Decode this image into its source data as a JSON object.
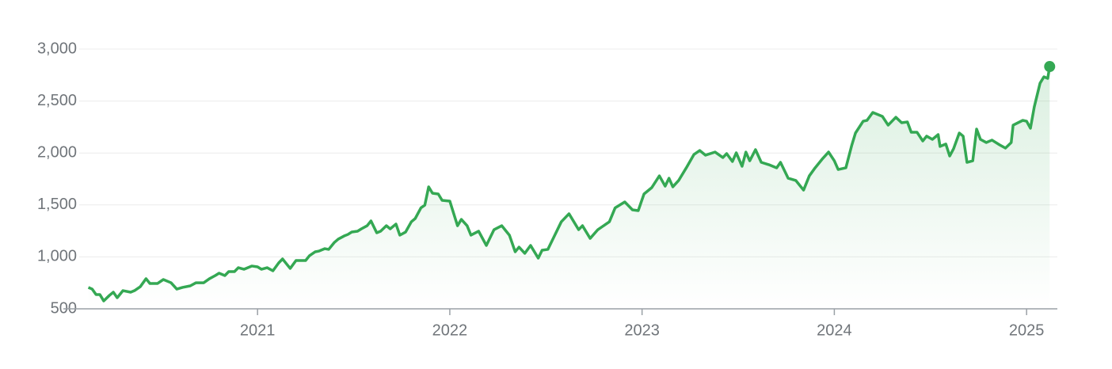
{
  "chart_data": {
    "type": "line",
    "x": [
      2020.12,
      2020.14,
      2020.16,
      2020.18,
      2020.2,
      2020.23,
      2020.25,
      2020.27,
      2020.3,
      2020.34,
      2020.36,
      2020.39,
      2020.42,
      2020.44,
      2020.48,
      2020.51,
      2020.55,
      2020.58,
      2020.61,
      2020.65,
      2020.68,
      2020.72,
      2020.75,
      2020.78,
      2020.8,
      2020.83,
      2020.85,
      2020.88,
      2020.9,
      2020.93,
      2020.97,
      2021.0,
      2021.02,
      2021.05,
      2021.08,
      2021.11,
      2021.13,
      2021.15,
      2021.17,
      2021.2,
      2021.22,
      2021.25,
      2021.27,
      2021.3,
      2021.32,
      2021.35,
      2021.37,
      2021.4,
      2021.42,
      2021.45,
      2021.47,
      2021.49,
      2021.52,
      2021.54,
      2021.57,
      2021.59,
      2021.62,
      2021.64,
      2021.67,
      2021.69,
      2021.72,
      2021.74,
      2021.77,
      2021.8,
      2021.82,
      2021.85,
      2021.87,
      2021.89,
      2021.91,
      2021.94,
      2021.96,
      2022.0,
      2022.04,
      2022.06,
      2022.09,
      2022.11,
      2022.15,
      2022.19,
      2022.23,
      2022.27,
      2022.31,
      2022.34,
      2022.36,
      2022.39,
      2022.42,
      2022.46,
      2022.48,
      2022.51,
      2022.54,
      2022.58,
      2022.62,
      2022.67,
      2022.69,
      2022.73,
      2022.77,
      2022.83,
      2022.86,
      2022.91,
      2022.95,
      2022.98,
      2023.01,
      2023.05,
      2023.09,
      2023.12,
      2023.14,
      2023.16,
      2023.19,
      2023.23,
      2023.27,
      2023.3,
      2023.33,
      2023.38,
      2023.42,
      2023.44,
      2023.47,
      2023.49,
      2023.52,
      2023.54,
      2023.56,
      2023.59,
      2023.62,
      2023.66,
      2023.7,
      2023.72,
      2023.76,
      2023.8,
      2023.84,
      2023.87,
      2023.9,
      2023.94,
      2023.97,
      2024.0,
      2024.02,
      2024.06,
      2024.09,
      2024.11,
      2024.15,
      2024.17,
      2024.2,
      2024.25,
      2024.28,
      2024.32,
      2024.35,
      2024.38,
      2024.4,
      2024.43,
      2024.46,
      2024.48,
      2024.51,
      2024.54,
      2024.55,
      2024.58,
      2024.6,
      2024.62,
      2024.65,
      2024.67,
      2024.69,
      2024.72,
      2024.74,
      2024.76,
      2024.79,
      2024.82,
      2024.86,
      2024.89,
      2024.92,
      2024.93,
      2024.98,
      2025.0,
      2025.02,
      2025.04,
      2025.07,
      2025.09,
      2025.11,
      2025.12
    ],
    "series": [
      {
        "color": "#34a853",
        "values": [
          706,
          690,
          637,
          637,
          576,
          630,
          660,
          607,
          675,
          660,
          675,
          713,
          790,
          744,
          744,
          782,
          751,
          690,
          706,
          721,
          751,
          751,
          790,
          820,
          843,
          820,
          858,
          858,
          896,
          881,
          912,
          904,
          881,
          896,
          866,
          942,
          980,
          934,
          889,
          965,
          965,
          965,
          1011,
          1049,
          1056,
          1079,
          1072,
          1140,
          1171,
          1201,
          1216,
          1239,
          1247,
          1270,
          1300,
          1346,
          1232,
          1247,
          1300,
          1270,
          1316,
          1209,
          1239,
          1338,
          1369,
          1472,
          1498,
          1674,
          1613,
          1605,
          1544,
          1537,
          1300,
          1361,
          1300,
          1209,
          1247,
          1110,
          1262,
          1300,
          1209,
          1049,
          1094,
          1034,
          1110,
          988,
          1064,
          1072,
          1186,
          1338,
          1415,
          1262,
          1300,
          1178,
          1262,
          1338,
          1472,
          1529,
          1453,
          1445,
          1605,
          1666,
          1780,
          1681,
          1757,
          1674,
          1735,
          1857,
          1986,
          2024,
          1979,
          2009,
          1956,
          1994,
          1918,
          2002,
          1872,
          2009,
          1925,
          2032,
          1910,
          1887,
          1857,
          1910,
          1757,
          1735,
          1643,
          1780,
          1857,
          1948,
          2009,
          1925,
          1841,
          1857,
          2070,
          2192,
          2306,
          2314,
          2390,
          2352,
          2268,
          2344,
          2291,
          2299,
          2200,
          2200,
          2116,
          2162,
          2131,
          2177,
          2063,
          2086,
          1971,
          2040,
          2192,
          2162,
          1910,
          1925,
          2230,
          2131,
          2101,
          2124,
          2078,
          2047,
          2101,
          2268,
          2314,
          2306,
          2238,
          2444,
          2672,
          2733,
          2718,
          2832
        ]
      }
    ],
    "xlim": [
      2019.99,
      2025.16
    ],
    "xticks": [
      2021,
      2022,
      2023,
      2024,
      2025
    ],
    "ylim": [
      500,
      3000
    ],
    "yticks": [
      500,
      {
        "value": 1000,
        "label": "1,000"
      },
      {
        "value": 1500,
        "label": "1,500"
      },
      {
        "value": 2000,
        "label": "2,000"
      },
      {
        "value": 2500,
        "label": "2,500"
      },
      {
        "value": 3000,
        "label": "3,000"
      }
    ],
    "grid": true
  }
}
